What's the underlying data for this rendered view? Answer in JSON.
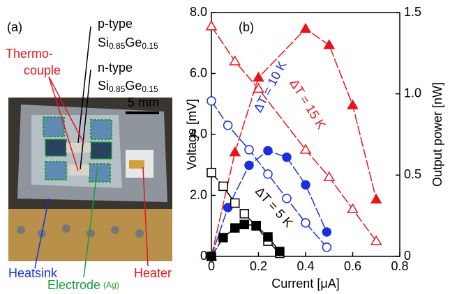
{
  "panel_a": {
    "label": "(a)",
    "p_type": "p-type",
    "p_material": [
      "Si",
      "0.85",
      "Ge",
      "0.15"
    ],
    "n_type": "n-type",
    "n_material": [
      "Si",
      "0.85",
      "Ge",
      "0.15"
    ],
    "thermocouple": [
      "Thermo-",
      "couple"
    ],
    "scale": "5 mm",
    "heatsink": "Heatsink",
    "electrode": "Electrode",
    "electrode_material": "(Ag)",
    "heater": "Heater"
  },
  "chart_data": {
    "type": "line",
    "panel_label": "(b)",
    "x_label": "Current [μA]",
    "y_label": "Voltage [mV]",
    "y2_label": "Output power [nW]",
    "xlim": [
      0,
      0.8
    ],
    "xticks": [
      0,
      0.2,
      0.4,
      0.6,
      0.8
    ],
    "ylim": [
      0,
      8
    ],
    "yticks": [
      0,
      {
        "value": 2,
        "label": "2.0"
      },
      {
        "value": 4,
        "label": "4.0"
      },
      {
        "value": 6,
        "label": "6.0"
      },
      {
        "value": 8,
        "label": "8.0"
      }
    ],
    "y2lim": [
      0,
      1.5
    ],
    "y2ticks": [
      0,
      0.5,
      {
        "value": 1,
        "label": "1.0"
      },
      1.5
    ],
    "series": [
      {
        "name": "ΔT = 15 K",
        "color": "#e8141b",
        "marker": "triangle",
        "x": [
          0,
          0.1,
          0.2,
          0.4,
          0.5,
          0.6,
          0.7
        ],
        "values": [
          7.55,
          6.4,
          5.5,
          3.5,
          2.6,
          1.55,
          0.5
        ],
        "power": [
          0,
          0.64,
          1.1,
          1.4,
          1.3,
          0.93,
          0.35
        ]
      },
      {
        "name": "ΔT = 10 K",
        "color": "#1a2ee0",
        "marker": "circle",
        "x": [
          0,
          0.07,
          0.16,
          0.24,
          0.32,
          0.4,
          0.49
        ],
        "values": [
          5.1,
          4.3,
          3.5,
          2.7,
          1.9,
          1.1,
          0.3
        ],
        "power": [
          0,
          0.3,
          0.56,
          0.65,
          0.61,
          0.44,
          0.15
        ]
      },
      {
        "name": "ΔT = 5 K",
        "color": "#000000",
        "marker": "square",
        "x": [
          0,
          0.05,
          0.1,
          0.14,
          0.19,
          0.24,
          0.29
        ],
        "values": [
          2.75,
          2.3,
          1.75,
          1.4,
          1.0,
          0.5,
          0.1
        ],
        "power": [
          0,
          0.115,
          0.175,
          0.196,
          0.19,
          0.12,
          0.03
        ]
      }
    ]
  }
}
